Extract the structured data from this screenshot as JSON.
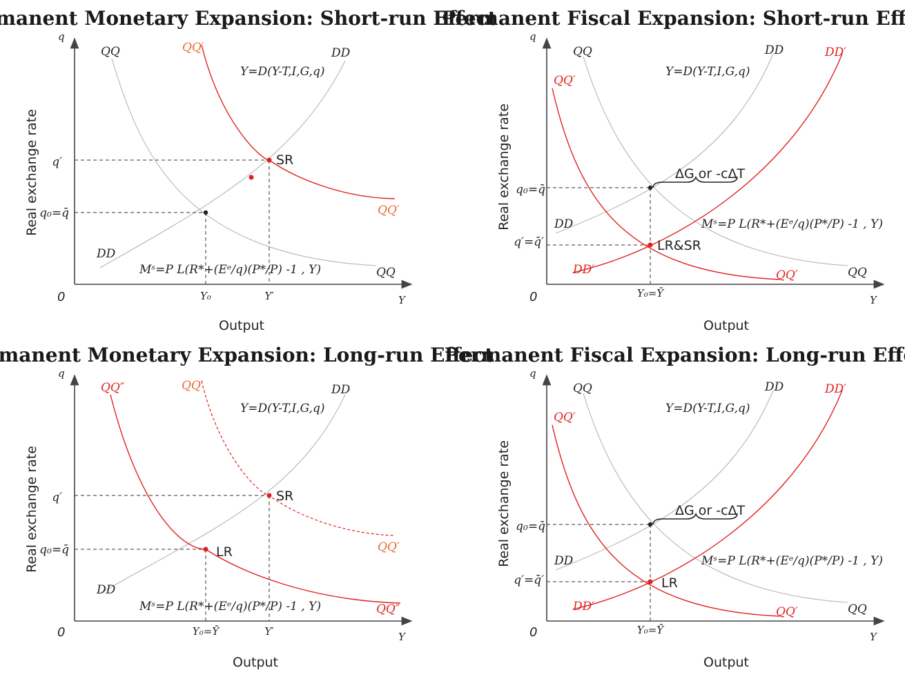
{
  "panels": {
    "tl": {
      "title": "Permanent Monetary Expansion: Short-run Effect",
      "ylabel": "Real exchange rate",
      "xlabel": "Output",
      "y_axis": "q",
      "x_axis": "Y",
      "origin": "0",
      "ticks_y": [
        "q′",
        "q₀=q̄"
      ],
      "ticks_x": [
        "Y₀",
        "Y′"
      ],
      "curves": {
        "qq_left": "QQ",
        "qq_right": "QQ",
        "qqp_top": "QQ′",
        "qqp_right": "QQ′",
        "dd_top": "DD",
        "dd_left": "DD"
      },
      "eq_d": "Y=D(Y-T,I,G,q)",
      "eq_m": "Mˢ=P L(R*+(Eᵉ/q)(P*/P) -1 , Y)",
      "points": [
        "SR"
      ]
    },
    "tr": {
      "title": "Permanent Fiscal Expansion: Short-run Effect",
      "ylabel": "Real exchange rate",
      "xlabel": "Output",
      "y_axis": "q",
      "x_axis": "Y",
      "origin": "0",
      "ticks_y": [
        "q₀=q̄",
        "q′=q̄′"
      ],
      "ticks_x": [
        "Y₀=Ȳ"
      ],
      "curves": {
        "qq_top": "QQ",
        "qq_right": "QQ",
        "qqp_top": "QQ′",
        "qqp_bottom": "QQ′",
        "dd_top": "DD",
        "dd_left": "DD",
        "ddp_top": "DD′",
        "ddp_bottom": "DD′"
      },
      "eq_d": "Y=D(Y-T,I,G,q)",
      "eq_m": "Mˢ=P L(R*+(Eᵉ/q)(P*/P) -1 , Y)",
      "brace": "ΔG or -cΔT",
      "points": [
        "LR&SR"
      ]
    },
    "bl": {
      "title": "Permanent Monetary Expansion: Long-run Effect",
      "ylabel": "Real exchange rate",
      "xlabel": "Output",
      "y_axis": "q",
      "x_axis": "Y",
      "origin": "0",
      "ticks_y": [
        "q′",
        "q₀=q̄"
      ],
      "ticks_x": [
        "Y₀=Ȳ",
        "Y′"
      ],
      "curves": {
        "qqpp_top": "QQ″",
        "qqpp_right": "QQ″",
        "qqp_top": "QQ′",
        "qqp_right": "QQ′",
        "dd_top": "DD",
        "dd_left": "DD"
      },
      "eq_d": "Y=D(Y-T,I,G,q)",
      "eq_m": "Mˢ=P L(R*+(Eᵉ/q)(P*/P) -1 , Y)",
      "points": [
        "SR",
        "LR"
      ]
    },
    "br": {
      "title": "Permanent Fiscal Expansion: Long-run Effect",
      "ylabel": "Real exchange rate",
      "xlabel": "Output",
      "y_axis": "q",
      "x_axis": "Y",
      "origin": "0",
      "ticks_y": [
        "q₀=q̄",
        "q′=q̄′"
      ],
      "ticks_x": [
        "Y₀=Ȳ"
      ],
      "curves": {
        "qq_top": "QQ",
        "qq_right": "QQ",
        "qqp_top": "QQ′",
        "qqp_bottom": "QQ′",
        "dd_top": "DD",
        "dd_left": "DD",
        "ddp_top": "DD′",
        "ddp_bottom": "DD′"
      },
      "eq_d": "Y=D(Y-T,I,G,q)",
      "eq_m": "Mˢ=P L(R*+(Eᵉ/q)(P*/P) -1 , Y)",
      "brace": "ΔG or -cΔT",
      "points": [
        "LR"
      ]
    }
  },
  "colors": {
    "red": "#e02020",
    "orange": "#e86a30",
    "gray": "#b5b5b5"
  }
}
